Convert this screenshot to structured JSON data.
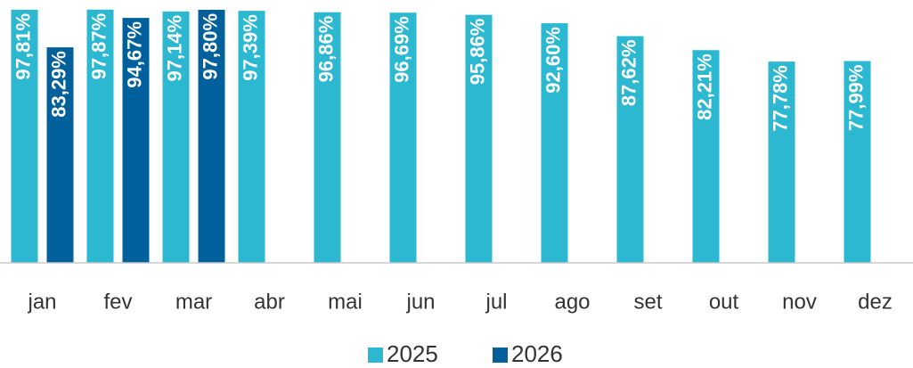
{
  "chart_data": {
    "type": "bar",
    "categories": [
      "jan",
      "fev",
      "mar",
      "abr",
      "mai",
      "jun",
      "jul",
      "ago",
      "set",
      "out",
      "nov",
      "dez"
    ],
    "series": [
      {
        "name": "2025",
        "color": "#2bb8d0",
        "values": [
          97.81,
          97.87,
          97.14,
          97.39,
          96.86,
          96.69,
          95.86,
          92.6,
          87.62,
          82.21,
          77.78,
          77.99
        ],
        "value_labels": [
          "97,81%",
          "97,87%",
          "97,14%",
          "97,39%",
          "96,86%",
          "96,69%",
          "95,86%",
          "92,60%",
          "87,62%",
          "82,21%",
          "77,78%",
          "77,99%"
        ]
      },
      {
        "name": "2026",
        "color": "#00609c",
        "values": [
          83.29,
          94.67,
          97.8,
          null,
          null,
          null,
          null,
          null,
          null,
          null,
          null,
          null
        ],
        "value_labels": [
          "83,29%",
          "94,67%",
          "97,80%",
          null,
          null,
          null,
          null,
          null,
          null,
          null,
          null,
          null
        ]
      }
    ],
    "ylim": [
      0,
      100
    ]
  }
}
